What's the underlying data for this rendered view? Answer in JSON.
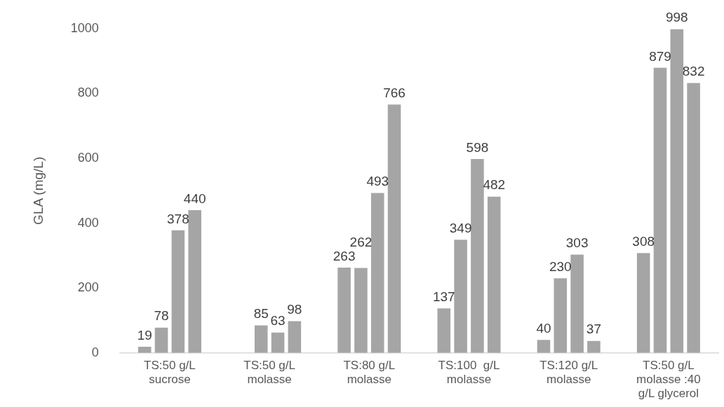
{
  "chart_data": {
    "type": "bar",
    "ylabel": "GLA (mg/L)",
    "categories": [
      "TS:50 g/L\nsucrose",
      "TS:50 g/L\nmolasse",
      "TS:80 g/L\nmolasse",
      "TS:100  g/L\nmolasse",
      "TS:120 g/L\nmolasse",
      "TS:50 g/L\nmolasse :40\ng/L glycerol"
    ],
    "series": [
      {
        "color": "#a5a5a5",
        "values": [
          19,
          null,
          263,
          137,
          40,
          308
        ]
      },
      {
        "color": "#a5a5a5",
        "values": [
          78,
          85,
          262,
          349,
          230,
          879
        ]
      },
      {
        "color": "#a5a5a5",
        "values": [
          378,
          63,
          493,
          598,
          303,
          998
        ]
      },
      {
        "color": "#a5a5a5",
        "values": [
          440,
          98,
          766,
          482,
          37,
          832
        ]
      }
    ],
    "ylim": [
      0,
      1000
    ],
    "yticks": [
      0,
      200,
      400,
      600,
      800,
      1000
    ],
    "grid": false,
    "legend": false,
    "data_labels": true
  }
}
